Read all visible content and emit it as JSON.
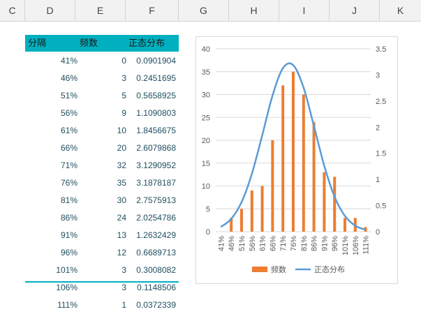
{
  "columns": [
    "C",
    "D",
    "E",
    "F",
    "G",
    "H",
    "I",
    "J",
    "K"
  ],
  "table": {
    "headers": {
      "interval": "分隔",
      "frequency": "频数",
      "normal": "正态分布"
    },
    "rows": [
      {
        "interval": "41%",
        "frequency": "0",
        "normal": "0.0901904"
      },
      {
        "interval": "46%",
        "frequency": "3",
        "normal": "0.2451695"
      },
      {
        "interval": "51%",
        "frequency": "5",
        "normal": "0.5658925"
      },
      {
        "interval": "56%",
        "frequency": "9",
        "normal": "1.1090803"
      },
      {
        "interval": "61%",
        "frequency": "10",
        "normal": "1.8456675"
      },
      {
        "interval": "66%",
        "frequency": "20",
        "normal": "2.6079868"
      },
      {
        "interval": "71%",
        "frequency": "32",
        "normal": "3.1290952"
      },
      {
        "interval": "76%",
        "frequency": "35",
        "normal": "3.1878187"
      },
      {
        "interval": "81%",
        "frequency": "30",
        "normal": "2.7575913"
      },
      {
        "interval": "86%",
        "frequency": "24",
        "normal": "2.0254786"
      },
      {
        "interval": "91%",
        "frequency": "13",
        "normal": "1.2632429"
      },
      {
        "interval": "96%",
        "frequency": "12",
        "normal": "0.6689713"
      },
      {
        "interval": "101%",
        "frequency": "3",
        "normal": "0.3008082"
      },
      {
        "interval": "106%",
        "frequency": "3",
        "normal": "0.1148506"
      },
      {
        "interval": "111%",
        "frequency": "1",
        "normal": "0.0372339"
      }
    ]
  },
  "chart_data": {
    "type": "bar",
    "categories": [
      "41%",
      "46%",
      "51%",
      "56%",
      "61%",
      "66%",
      "71%",
      "76%",
      "81%",
      "86%",
      "91%",
      "96%",
      "101%",
      "106%",
      "111%"
    ],
    "series": [
      {
        "name": "频数",
        "type": "bar",
        "axis": "left",
        "color": "#ed7d31",
        "values": [
          0,
          3,
          5,
          9,
          10,
          20,
          32,
          35,
          30,
          24,
          13,
          12,
          3,
          3,
          1
        ]
      },
      {
        "name": "正态分布",
        "type": "line",
        "axis": "right",
        "color": "#5b9bd5",
        "values": [
          0.0901904,
          0.2451695,
          0.5658925,
          1.1090803,
          1.8456675,
          2.6079868,
          3.1290952,
          3.1878187,
          2.7575913,
          2.0254786,
          1.2632429,
          0.6689713,
          0.3008082,
          0.1148506,
          0.0372339
        ]
      }
    ],
    "ylim": [
      0,
      40
    ],
    "ylim_right": [
      0,
      3.5
    ],
    "yticks_left": [
      "0",
      "5",
      "10",
      "15",
      "20",
      "25",
      "30",
      "35",
      "40"
    ],
    "yticks_right": [
      "0",
      "0.5",
      "1",
      "1.5",
      "2",
      "2.5",
      "3",
      "3.5"
    ],
    "grid": true,
    "legend": "bottom"
  }
}
